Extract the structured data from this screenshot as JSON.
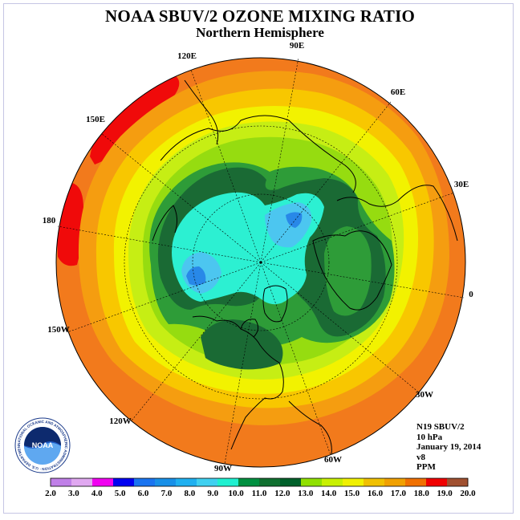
{
  "title": "NOAA SBUV/2 OZONE MIXING RATIO",
  "subtitle": "Northern Hemisphere",
  "longitude_labels": [
    "90E",
    "60E",
    "30E",
    "0",
    "30W",
    "60W",
    "90W",
    "120W",
    "150W",
    "180",
    "150E",
    "120E"
  ],
  "info": {
    "satellite": "N19 SBUV/2",
    "pressure": "10 hPa",
    "date": "January 19, 2014",
    "version": "v8",
    "units": "PPM"
  },
  "logo": {
    "text": "NOAA",
    "ring_text": "NATIONAL OCEANIC AND ATMOSPHERIC ADMINISTRATION · U.S. DEPARTMENT OF COMMERCE"
  },
  "colorbar": {
    "labels": [
      "2.0",
      "3.0",
      "4.0",
      "5.0",
      "6.0",
      "7.0",
      "8.0",
      "9.0",
      "10.0",
      "11.0",
      "12.0",
      "13.0",
      "14.0",
      "15.0",
      "16.0",
      "17.0",
      "18.0",
      "19.0",
      "20.0"
    ],
    "colors": [
      "#c080e8",
      "#e0a8f0",
      "#f000f0",
      "#0000f0",
      "#1a74f0",
      "#1890e8",
      "#20b0f0",
      "#40d0f0",
      "#20f0d0",
      "#009040",
      "#107030",
      "#00602a",
      "#90e000",
      "#c8f000",
      "#f0f000",
      "#f0c000",
      "#f0a000",
      "#f07000",
      "#f00000",
      "#a05030"
    ]
  },
  "map_colors": {
    "band_17_18": "#f27a1c",
    "band_16_17": "#f59d10",
    "band_15_16": "#f8c700",
    "band_14_15": "#f2f200",
    "band_13_14": "#c6ee14",
    "band_12_13": "#96dc10",
    "band_11_12": "#2e9c38",
    "band_10_11": "#1a6a34",
    "band_9_10": "#2cf0d2",
    "band_8_9": "#4cc6f0",
    "band_7_8": "#2888e8",
    "band_18_19": "#f00a0a",
    "coastline": "#000000"
  }
}
